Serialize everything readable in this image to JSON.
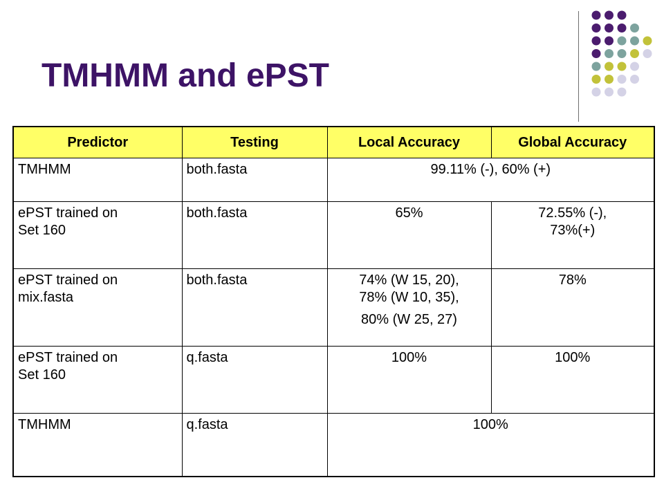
{
  "title": "TMHMM and ePST",
  "table": {
    "headers": [
      "Predictor",
      "Testing",
      "Local Accuracy",
      "Global Accuracy"
    ],
    "rows": [
      {
        "predictor": "TMHMM",
        "testing": "both.fasta",
        "merged": "99.11% (-), 60% (+)"
      },
      {
        "predictor": [
          "ePST trained on",
          "Set 160"
        ],
        "testing": "both.fasta",
        "local": "65%",
        "global": [
          "72.55% (-),",
          "73%(+)"
        ]
      },
      {
        "predictor": [
          "ePST trained on",
          "mix.fasta"
        ],
        "testing": "both.fasta",
        "local": [
          "74% (W 15, 20),",
          "78% (W 10, 35),",
          "80% (W 25, 27)"
        ],
        "global": "78%"
      },
      {
        "predictor": [
          "ePST trained on",
          "Set 160"
        ],
        "testing": "q.fasta",
        "local": "100%",
        "global": "100%"
      },
      {
        "predictor": "TMHMM",
        "testing": "q.fasta",
        "merged": "100%"
      }
    ]
  },
  "decoration": {
    "dot_colors": {
      "purple": "#4b1c6e",
      "teal": "#7da39e",
      "olive": "#c2c23a",
      "lavender": "#d4d2e6"
    }
  }
}
